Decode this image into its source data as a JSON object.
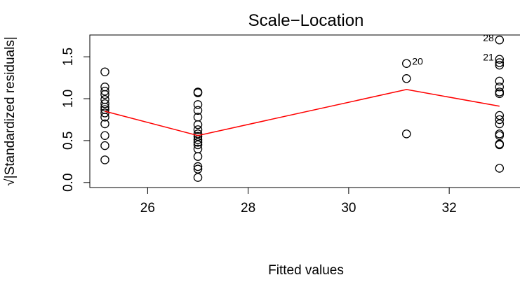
{
  "chart_data": {
    "type": "scatter",
    "title": "Scale−Location",
    "xlabel": "Fitted values",
    "ylabel": "√|Standardized residuals|",
    "xlim": [
      24.85,
      33.45
    ],
    "ylim": [
      -0.06,
      1.76
    ],
    "xticks": [
      26,
      28,
      30,
      32
    ],
    "yticks": [
      0.0,
      0.5,
      1.0,
      1.5
    ],
    "xtick_labels": [
      "26",
      "28",
      "30",
      "32"
    ],
    "ytick_labels": [
      "0.0",
      "0.5",
      "1.0",
      "1.5"
    ],
    "grid": false,
    "point_color": "#000000",
    "line_color": "#ff0000",
    "series": [
      {
        "kind": "points",
        "points": [
          [
            25.15,
            1.32
          ],
          [
            25.15,
            1.14
          ],
          [
            25.15,
            1.09
          ],
          [
            25.15,
            1.05
          ],
          [
            25.15,
            0.99
          ],
          [
            25.15,
            0.94
          ],
          [
            25.15,
            0.9
          ],
          [
            25.15,
            0.87
          ],
          [
            25.15,
            0.83
          ],
          [
            25.15,
            0.78
          ],
          [
            25.15,
            0.7
          ],
          [
            25.15,
            0.56
          ],
          [
            25.15,
            0.44
          ],
          [
            25.15,
            0.27
          ],
          [
            27.0,
            1.08
          ],
          [
            27.0,
            1.07
          ],
          [
            27.0,
            0.93
          ],
          [
            27.0,
            0.86
          ],
          [
            27.0,
            0.78
          ],
          [
            27.0,
            0.69
          ],
          [
            27.0,
            0.63
          ],
          [
            27.0,
            0.58
          ],
          [
            27.0,
            0.55
          ],
          [
            27.0,
            0.51
          ],
          [
            27.0,
            0.48
          ],
          [
            27.0,
            0.45
          ],
          [
            27.0,
            0.4
          ],
          [
            27.0,
            0.31
          ],
          [
            27.0,
            0.19
          ],
          [
            27.0,
            0.16
          ],
          [
            27.0,
            0.06
          ],
          [
            31.15,
            1.42
          ],
          [
            31.15,
            1.24
          ],
          [
            31.15,
            0.58
          ],
          [
            33.0,
            1.7
          ],
          [
            33.0,
            1.47
          ],
          [
            33.0,
            1.43
          ],
          [
            33.0,
            1.4
          ],
          [
            33.0,
            1.21
          ],
          [
            33.0,
            1.14
          ],
          [
            33.0,
            1.08
          ],
          [
            33.0,
            1.06
          ],
          [
            33.0,
            0.8
          ],
          [
            33.0,
            0.75
          ],
          [
            33.0,
            0.7
          ],
          [
            33.0,
            0.58
          ],
          [
            33.0,
            0.56
          ],
          [
            33.0,
            0.46
          ],
          [
            33.0,
            0.45
          ],
          [
            33.0,
            0.17
          ]
        ]
      },
      {
        "kind": "line",
        "points": [
          [
            25.15,
            0.85
          ],
          [
            27.0,
            0.56
          ],
          [
            31.15,
            1.11
          ],
          [
            33.0,
            0.91
          ]
        ]
      }
    ],
    "annotations": [
      {
        "text": "20",
        "x": 31.15,
        "y": 1.42,
        "side": "right"
      },
      {
        "text": "28",
        "x": 33.0,
        "y": 1.7,
        "side": "left"
      },
      {
        "text": "21",
        "x": 33.0,
        "y": 1.47,
        "side": "left"
      }
    ]
  }
}
